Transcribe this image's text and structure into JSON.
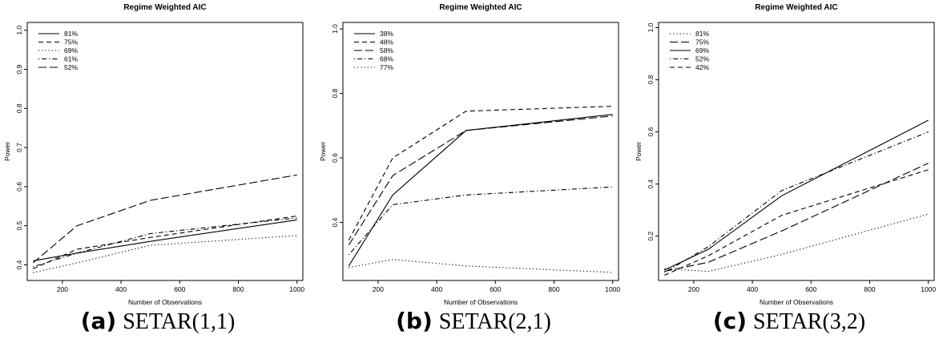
{
  "chart_data": [
    {
      "type": "line",
      "title": "Regime Weighted AIC",
      "xlabel": "Number of Observations",
      "ylabel": "Power",
      "caption_tag": "(a)",
      "caption_name": "SETAR(1,1)",
      "x": [
        100,
        250,
        500,
        1000
      ],
      "xlim": [
        80,
        1020
      ],
      "ylim": [
        0.36,
        1.02
      ],
      "xticks": [
        200,
        400,
        600,
        800,
        1000
      ],
      "yticks": [
        0.4,
        0.5,
        0.6,
        0.7,
        0.8,
        0.9,
        1.0
      ],
      "ytick_labels": [
        "0.4",
        "0.5",
        "0.6",
        "0.7",
        "0.8",
        "0.9",
        "1.0"
      ],
      "legend": "top-left",
      "grid": false,
      "series": [
        {
          "name": "81%",
          "dash": "solid",
          "values": [
            0.41,
            0.43,
            0.46,
            0.515
          ]
        },
        {
          "name": "75%",
          "dash": "dashed",
          "values": [
            0.39,
            0.44,
            0.47,
            0.525
          ]
        },
        {
          "name": "69%",
          "dash": "dotted",
          "values": [
            0.38,
            0.405,
            0.45,
            0.475
          ]
        },
        {
          "name": "61%",
          "dash": "dotdash",
          "values": [
            0.395,
            0.43,
            0.48,
            0.52
          ]
        },
        {
          "name": "52%",
          "dash": "longdash",
          "values": [
            0.405,
            0.5,
            0.565,
            0.63
          ]
        }
      ]
    },
    {
      "type": "line",
      "title": "Regime Weighted AIC",
      "xlabel": "Number of Observations",
      "ylabel": "Power",
      "caption_tag": "(b)",
      "caption_name": "SETAR(2,1)",
      "x": [
        100,
        250,
        500,
        1000
      ],
      "xlim": [
        80,
        1020
      ],
      "ylim": [
        0.22,
        1.02
      ],
      "xticks": [
        200,
        400,
        600,
        800,
        1000
      ],
      "yticks": [
        0.4,
        0.6,
        0.8,
        1.0
      ],
      "ytick_labels": [
        "0.4",
        "0.6",
        "0.8",
        "1.0"
      ],
      "legend": "top-left",
      "grid": false,
      "series": [
        {
          "name": "38%",
          "dash": "solid",
          "values": [
            0.265,
            0.485,
            0.685,
            0.735
          ]
        },
        {
          "name": "48%",
          "dash": "dashed",
          "values": [
            0.345,
            0.6,
            0.745,
            0.76
          ]
        },
        {
          "name": "58%",
          "dash": "longdash",
          "values": [
            0.33,
            0.545,
            0.685,
            0.73
          ]
        },
        {
          "name": "68%",
          "dash": "dotdash",
          "values": [
            0.3,
            0.455,
            0.485,
            0.51
          ]
        },
        {
          "name": "77%",
          "dash": "dotted",
          "values": [
            0.26,
            0.285,
            0.265,
            0.245
          ]
        }
      ]
    },
    {
      "type": "line",
      "title": "Regime Weighted AIC",
      "xlabel": "Number of Observations",
      "ylabel": "Power",
      "caption_tag": "(c)",
      "caption_name": "SETAR(3,2)",
      "x": [
        100,
        250,
        500,
        1000
      ],
      "xlim": [
        80,
        1020
      ],
      "ylim": [
        0.03,
        1.02
      ],
      "xticks": [
        200,
        400,
        600,
        800,
        1000
      ],
      "yticks": [
        0.2,
        0.4,
        0.6,
        0.8,
        1.0
      ],
      "ytick_labels": [
        "0.2",
        "0.4",
        "0.6",
        "0.8",
        "1.0"
      ],
      "legend": "top-left",
      "grid": false,
      "series": [
        {
          "name": "81%",
          "dash": "dotted",
          "values": [
            0.075,
            0.065,
            0.13,
            0.285
          ]
        },
        {
          "name": "75%",
          "dash": "longdash",
          "values": [
            0.065,
            0.1,
            0.22,
            0.48
          ]
        },
        {
          "name": "69%",
          "dash": "solid",
          "values": [
            0.07,
            0.15,
            0.355,
            0.645
          ]
        },
        {
          "name": "52%",
          "dash": "dotdash",
          "values": [
            0.06,
            0.16,
            0.375,
            0.6
          ]
        },
        {
          "name": "42%",
          "dash": "dashed",
          "values": [
            0.05,
            0.125,
            0.28,
            0.455
          ]
        }
      ]
    }
  ]
}
